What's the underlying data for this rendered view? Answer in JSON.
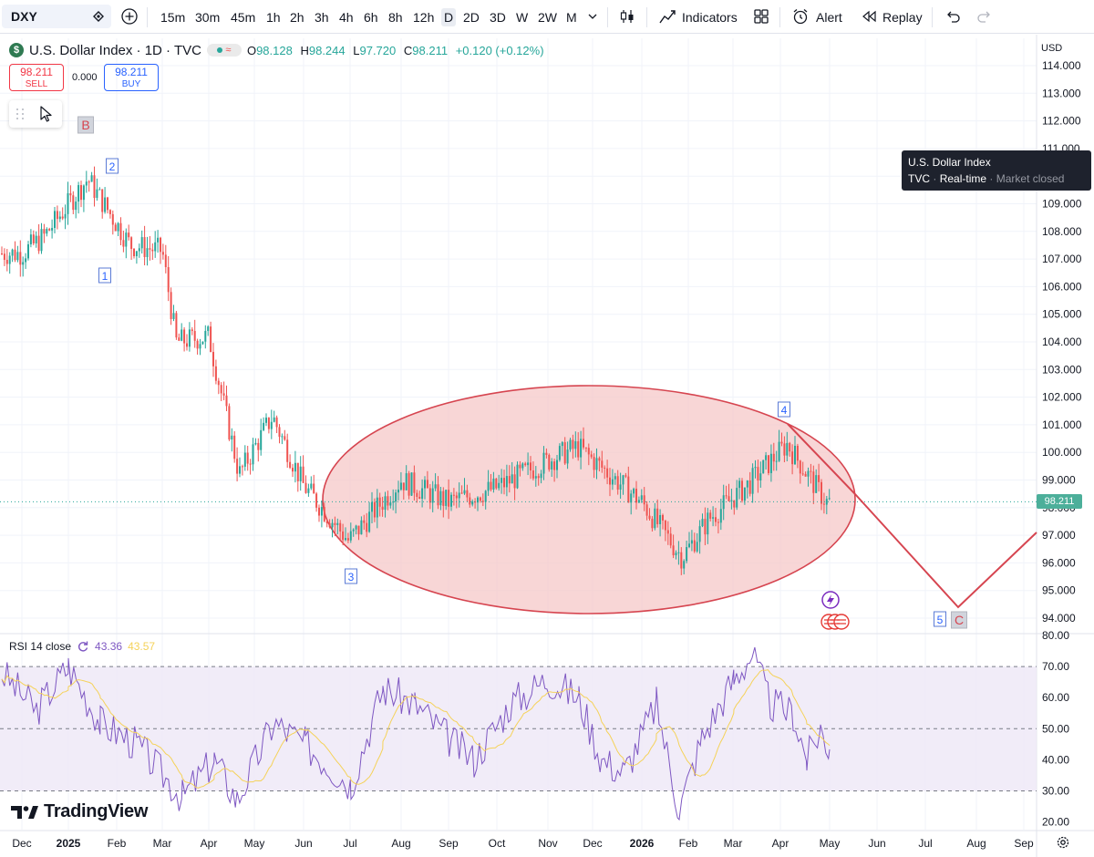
{
  "toolbar": {
    "symbol": "DXY",
    "timeframes": [
      "15m",
      "30m",
      "45m",
      "1h",
      "2h",
      "3h",
      "4h",
      "6h",
      "8h",
      "12h",
      "D",
      "2D",
      "3D",
      "W",
      "2W",
      "M"
    ],
    "active_timeframe": "D",
    "indicators_label": "Indicators",
    "alert_label": "Alert",
    "replay_label": "Replay"
  },
  "legend": {
    "title": "U.S. Dollar Index · 1D · TVC",
    "o_label": "O",
    "o_value": "98.128",
    "h_label": "H",
    "h_value": "98.244",
    "l_label": "L",
    "l_value": "97.720",
    "c_label": "C",
    "c_value": "98.211",
    "change": "+0.120 (+0.12%)"
  },
  "trade": {
    "sell_price": "98.211",
    "sell_label": "SELL",
    "buy_price": "98.211",
    "buy_label": "BUY",
    "spread": "0.000"
  },
  "tooltip": {
    "name": "U.S. Dollar Index",
    "exchange": "TVC",
    "feed": "Real-time",
    "status": "Market closed"
  },
  "price_axis": {
    "currency": "USD",
    "current_price": "98.211",
    "labels": [
      "114.000",
      "113.000",
      "112.000",
      "111.000",
      "110.000",
      "109.000",
      "108.000",
      "107.000",
      "106.000",
      "105.000",
      "104.000",
      "103.000",
      "102.000",
      "101.000",
      "100.000",
      "99.000",
      "98.000",
      "97.000",
      "96.000",
      "95.000",
      "94.000"
    ]
  },
  "time_axis": {
    "labels": [
      "Dec",
      "2025",
      "Feb",
      "Mar",
      "Apr",
      "May",
      "Jun",
      "Jul",
      "Aug",
      "Sep",
      "Oct",
      "Nov",
      "Dec",
      "2026",
      "Feb",
      "Mar",
      "Apr",
      "May",
      "Jun",
      "Jul",
      "Aug",
      "Sep"
    ]
  },
  "rsi": {
    "label": "RSI 14 close",
    "value": "43.36",
    "ma_value": "43.57",
    "axis_labels": [
      "80.00",
      "70.00",
      "60.00",
      "50.00",
      "40.00",
      "30.00",
      "20.00"
    ]
  },
  "wave_labels": [
    "B",
    "2",
    "1",
    "3",
    "4",
    "5",
    "C"
  ],
  "brand": {
    "name": "TradingView"
  },
  "colors": {
    "up": "#26a69a",
    "down": "#ef5350",
    "ellipse_fill": "#f5c6c6",
    "ellipse_stroke": "#d64550",
    "rsi_line": "#7e57c2",
    "rsi_ma": "#f5d259",
    "rsi_band": "#ede7f6",
    "price_tag": "#4caf9a"
  },
  "chart_data": {
    "type": "candlestick",
    "title": "U.S. Dollar Index · 1D · TVC",
    "ylim": [
      93.5,
      114.5
    ],
    "x_range": [
      "2024-12",
      "2026-09"
    ],
    "wave_points": [
      {
        "label": "2",
        "date": "2025-01-13",
        "price": 110.1
      },
      {
        "label": "1",
        "date": "2025-01-27",
        "price": 107.4
      },
      {
        "label": "3",
        "date": "2025-07-01",
        "price": 96.4
      },
      {
        "label": "4",
        "date": "2026-04-08",
        "price": 101.1
      },
      {
        "label": "5",
        "date": "2026-07-22",
        "price": 94.2
      },
      {
        "label": "C",
        "date": "2026-07-22",
        "price": 94.2
      },
      {
        "label": "B",
        "date": "2024-12-25",
        "price": 112.0
      }
    ],
    "series": [
      {
        "name": "DXY close",
        "x": [
          "2024-11-25",
          "2024-12-15",
          "2025-01-13",
          "2025-02-10",
          "2025-03-01",
          "2025-03-10",
          "2025-04-01",
          "2025-04-21",
          "2025-05-12",
          "2025-06-01",
          "2025-06-30",
          "2025-07-31",
          "2025-08-31",
          "2025-09-30",
          "2025-10-31",
          "2025-11-21",
          "2025-12-31",
          "2026-01-27",
          "2026-02-15",
          "2026-03-10",
          "2026-04-05",
          "2026-04-29"
        ],
        "values": [
          107.2,
          107.8,
          109.9,
          107.5,
          107.3,
          104.0,
          104.2,
          99.2,
          101.3,
          98.8,
          96.8,
          99.0,
          98.2,
          98.7,
          99.7,
          100.2,
          98.2,
          96.2,
          97.6,
          98.8,
          100.3,
          98.2
        ]
      }
    ],
    "rsi": {
      "name": "RSI 14 close",
      "ylim": [
        15,
        80
      ],
      "bands": [
        70,
        50,
        30
      ],
      "last": 43.36,
      "ma_last": 43.57
    }
  }
}
